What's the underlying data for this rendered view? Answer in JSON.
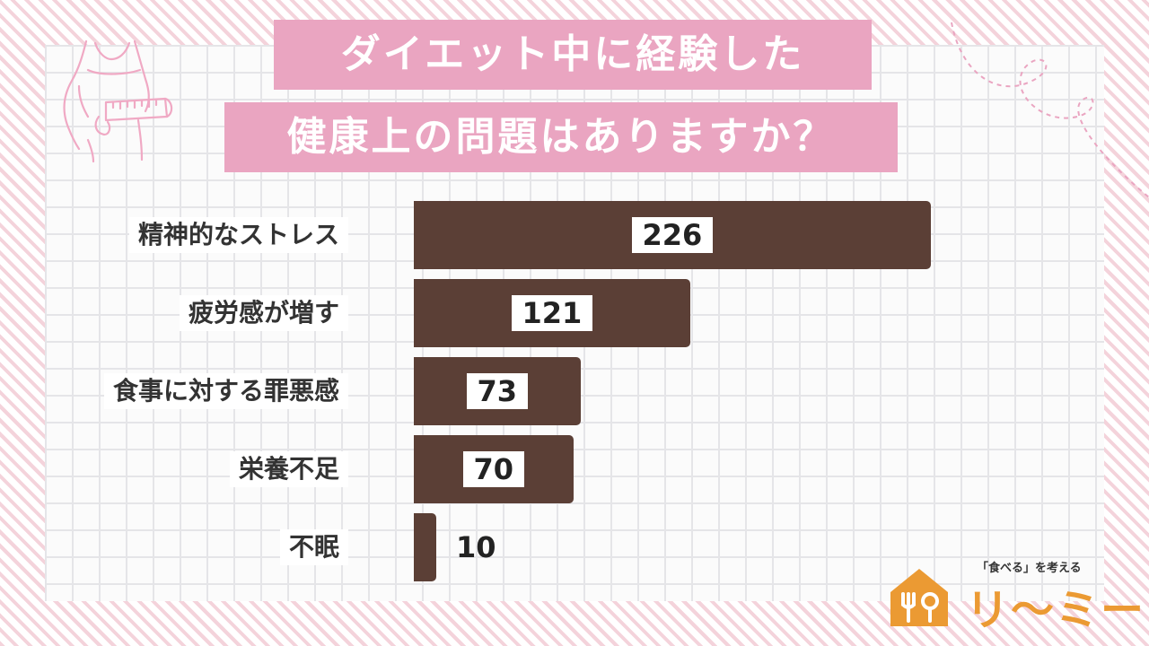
{
  "title": {
    "line1": "ダイエット中に経験した",
    "line2": "健康上の問題はありますか？"
  },
  "chart_data": {
    "type": "bar",
    "orientation": "horizontal",
    "categories": [
      "精神的なストレス",
      "疲労感が増す",
      "食事に対する罪悪感",
      "栄養不足",
      "不眠"
    ],
    "values": [
      226,
      121,
      73,
      70,
      10
    ],
    "title": "ダイエット中に経験した健康上の問題はありますか？",
    "xlabel": "",
    "ylabel": "",
    "grid": false,
    "legend": "none"
  },
  "colors": {
    "bar": "#5b3f36",
    "title_band": "#eaa5c1",
    "accent_orange": "#eb9a33",
    "stripe_pink": "#f4d3db"
  },
  "icons": [
    "measuring-tape-figure-icon",
    "fork-spoon-house-icon"
  ],
  "logo": {
    "tagline": "「食べる」を考える",
    "name": "リ〜ミー"
  }
}
